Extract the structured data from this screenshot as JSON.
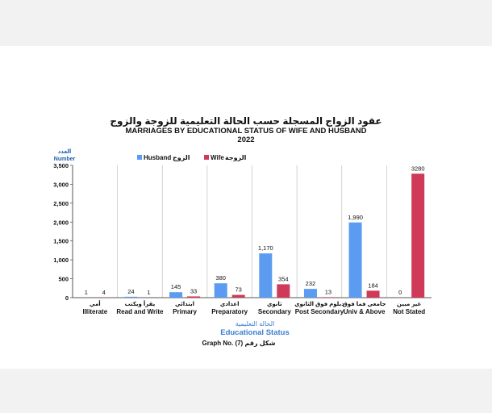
{
  "chart_data": {
    "type": "bar",
    "title_ar": "عقود الزواج المسجلة حسب الحالة التعليمية للزوجة والزوج",
    "title": "MARRIAGES BY EDUCATIONAL STATUS OF WIFE AND HUSBAND",
    "year": "2022",
    "ylabel_ar": "العدد",
    "ylabel": "Number",
    "xlabel_ar": "الحالة التعليمية",
    "xlabel": "Educational Status",
    "caption": "Graph No. (7) شكل رقم",
    "ylim": [
      0,
      3500
    ],
    "yticks": [
      0,
      500,
      1000,
      1500,
      2000,
      2500,
      3000,
      3500
    ],
    "ytick_labels": [
      "0",
      "500",
      "1,000",
      "1,500",
      "2,000",
      "2,500",
      "3,000",
      "3,500"
    ],
    "grid": "vertical category separators",
    "legend_position": "top",
    "categories": [
      {
        "ar": "أمي",
        "en": "Illiterate"
      },
      {
        "ar": "يقرأ ويكتب",
        "en": "Read and Write"
      },
      {
        "ar": "ابتدائي",
        "en": "Primary"
      },
      {
        "ar": "اعدادي",
        "en": "Preparatory"
      },
      {
        "ar": "ثانوي",
        "en": "Secondary"
      },
      {
        "ar": "دبلوم فوق الثانوي",
        "en": "Post Secondary"
      },
      {
        "ar": "جامعي فما فوق",
        "en": "Univ & Above"
      },
      {
        "ar": "غير مبين",
        "en": "Not Stated"
      }
    ],
    "series": [
      {
        "name": "Husband",
        "name_ar": "الزوج",
        "color": "#5b9bf0",
        "values": [
          1,
          24,
          145,
          380,
          1170,
          232,
          1990,
          0
        ],
        "labels": [
          "1",
          "24",
          "145",
          "380",
          "1,170",
          "232",
          "1,990",
          "0"
        ]
      },
      {
        "name": "Wife",
        "name_ar": "الزوجة",
        "color": "#cf3a58",
        "values": [
          4,
          1,
          33,
          73,
          354,
          13,
          184,
          3280
        ],
        "labels": [
          "4",
          "1",
          "33",
          "73",
          "354",
          "13",
          "184",
          "3280"
        ]
      }
    ]
  }
}
